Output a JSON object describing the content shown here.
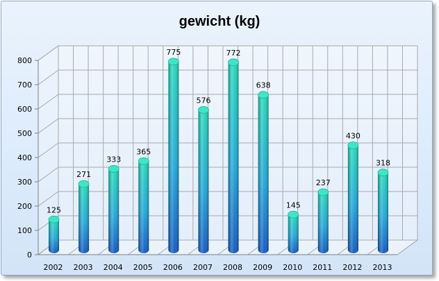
{
  "chart_data": {
    "type": "bar",
    "title": "gewicht (kg)",
    "xlabel": "",
    "ylabel": "",
    "categories": [
      "2002",
      "2003",
      "2004",
      "2005",
      "2006",
      "2007",
      "2008",
      "2009",
      "2010",
      "2011",
      "2012",
      "2013"
    ],
    "values": [
      125,
      271,
      333,
      365,
      775,
      576,
      772,
      638,
      145,
      237,
      430,
      318
    ],
    "ylim": [
      0,
      800
    ],
    "yticks": [
      0,
      100,
      200,
      300,
      400,
      500,
      600,
      700,
      800
    ],
    "grid": true,
    "legend": "none",
    "style": "3d-cylinder",
    "colors": {
      "bar_top": "#1fd8b8",
      "bar_mid": "#1aa6d8",
      "bar_bottom": "#0a55c0",
      "grid": "#a8a8a8",
      "background": "#dcebfb"
    }
  }
}
